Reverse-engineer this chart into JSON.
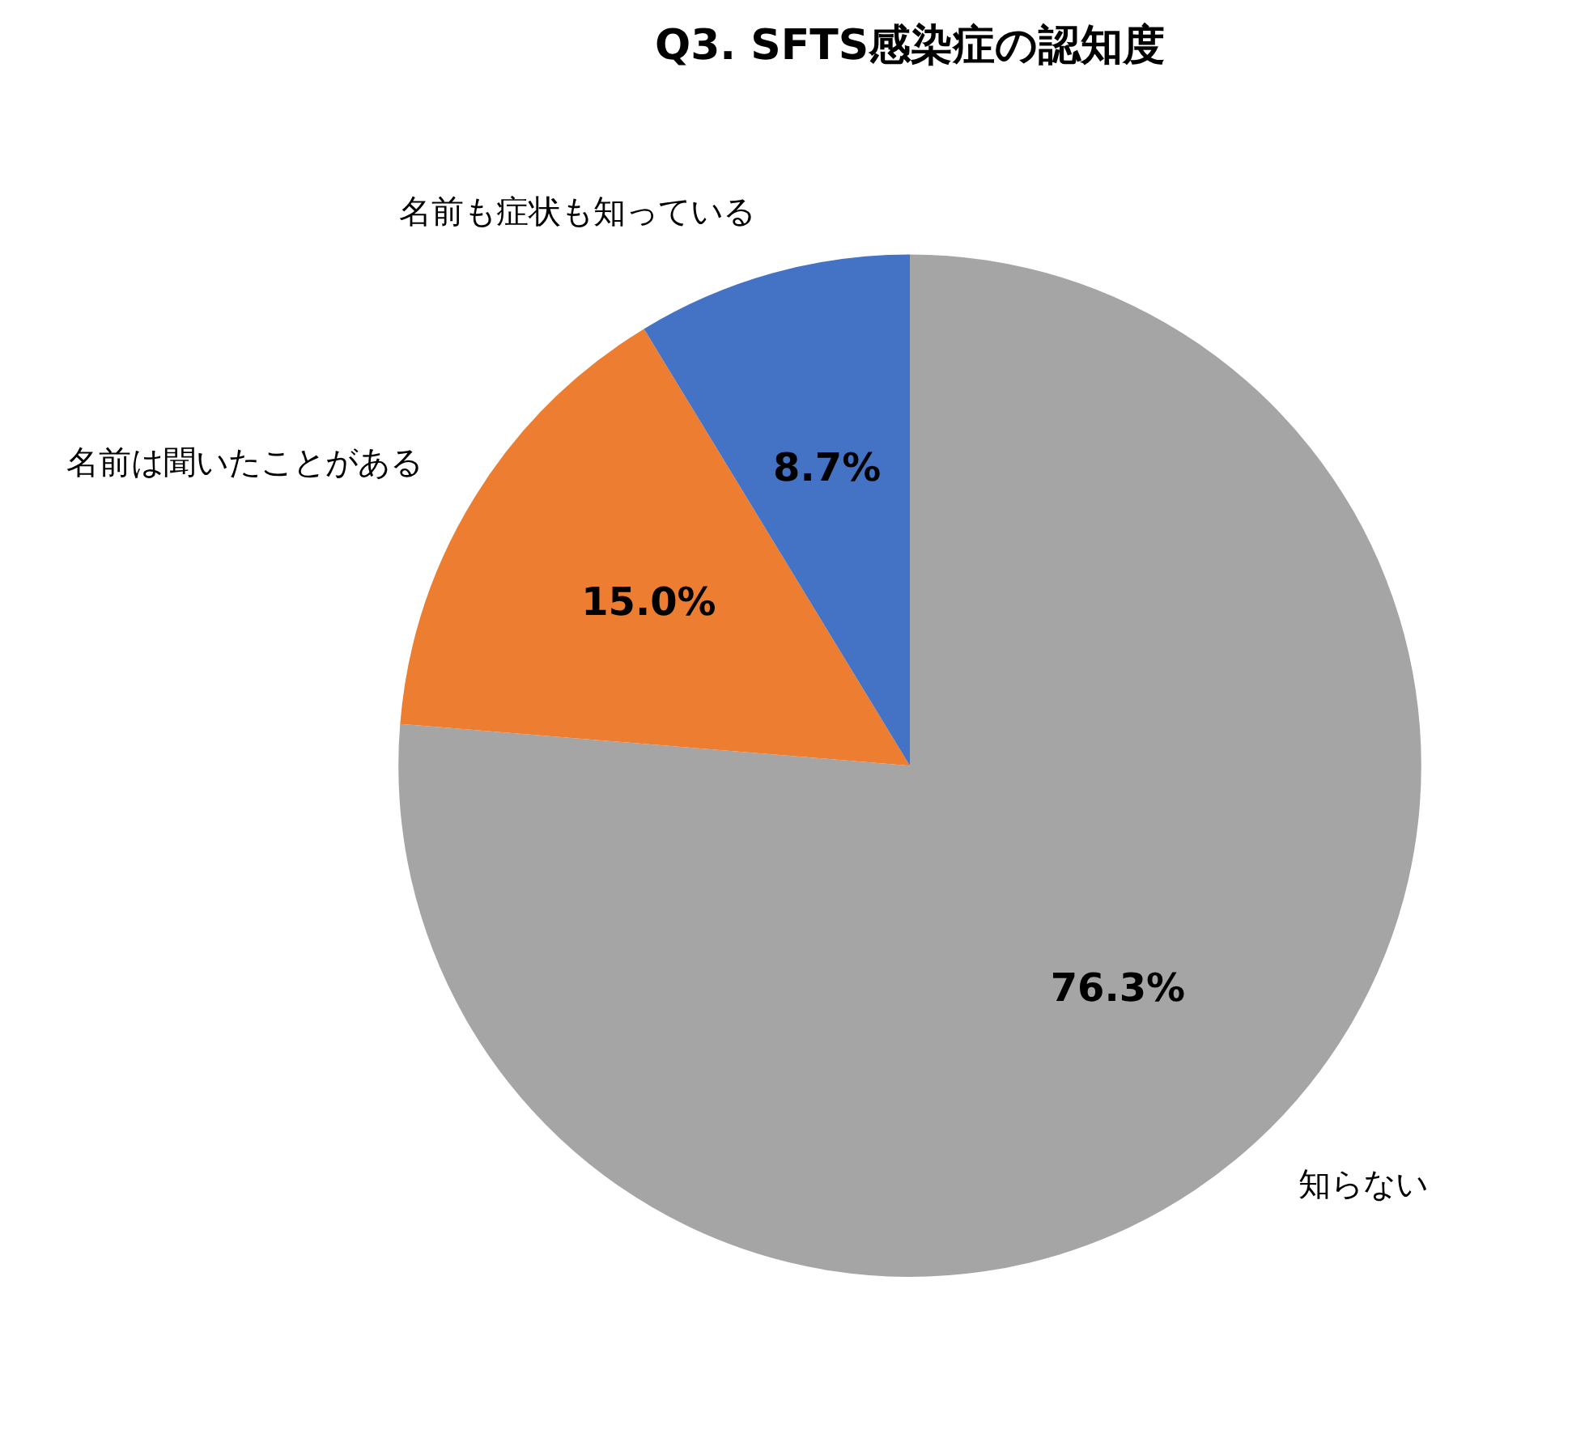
{
  "chart_data": {
    "type": "pie",
    "title": "Q3. SFTS感染症の認知度",
    "categories": [
      "知らない",
      "名前は聞いたことがある",
      "名前も症状も知っている"
    ],
    "values": [
      76.3,
      15.0,
      8.7
    ],
    "colors": [
      "#a5a5a5",
      "#ed7d31",
      "#4472c4"
    ],
    "value_labels": [
      "76.3%",
      "15.0%",
      "8.7%"
    ],
    "legend": false
  }
}
